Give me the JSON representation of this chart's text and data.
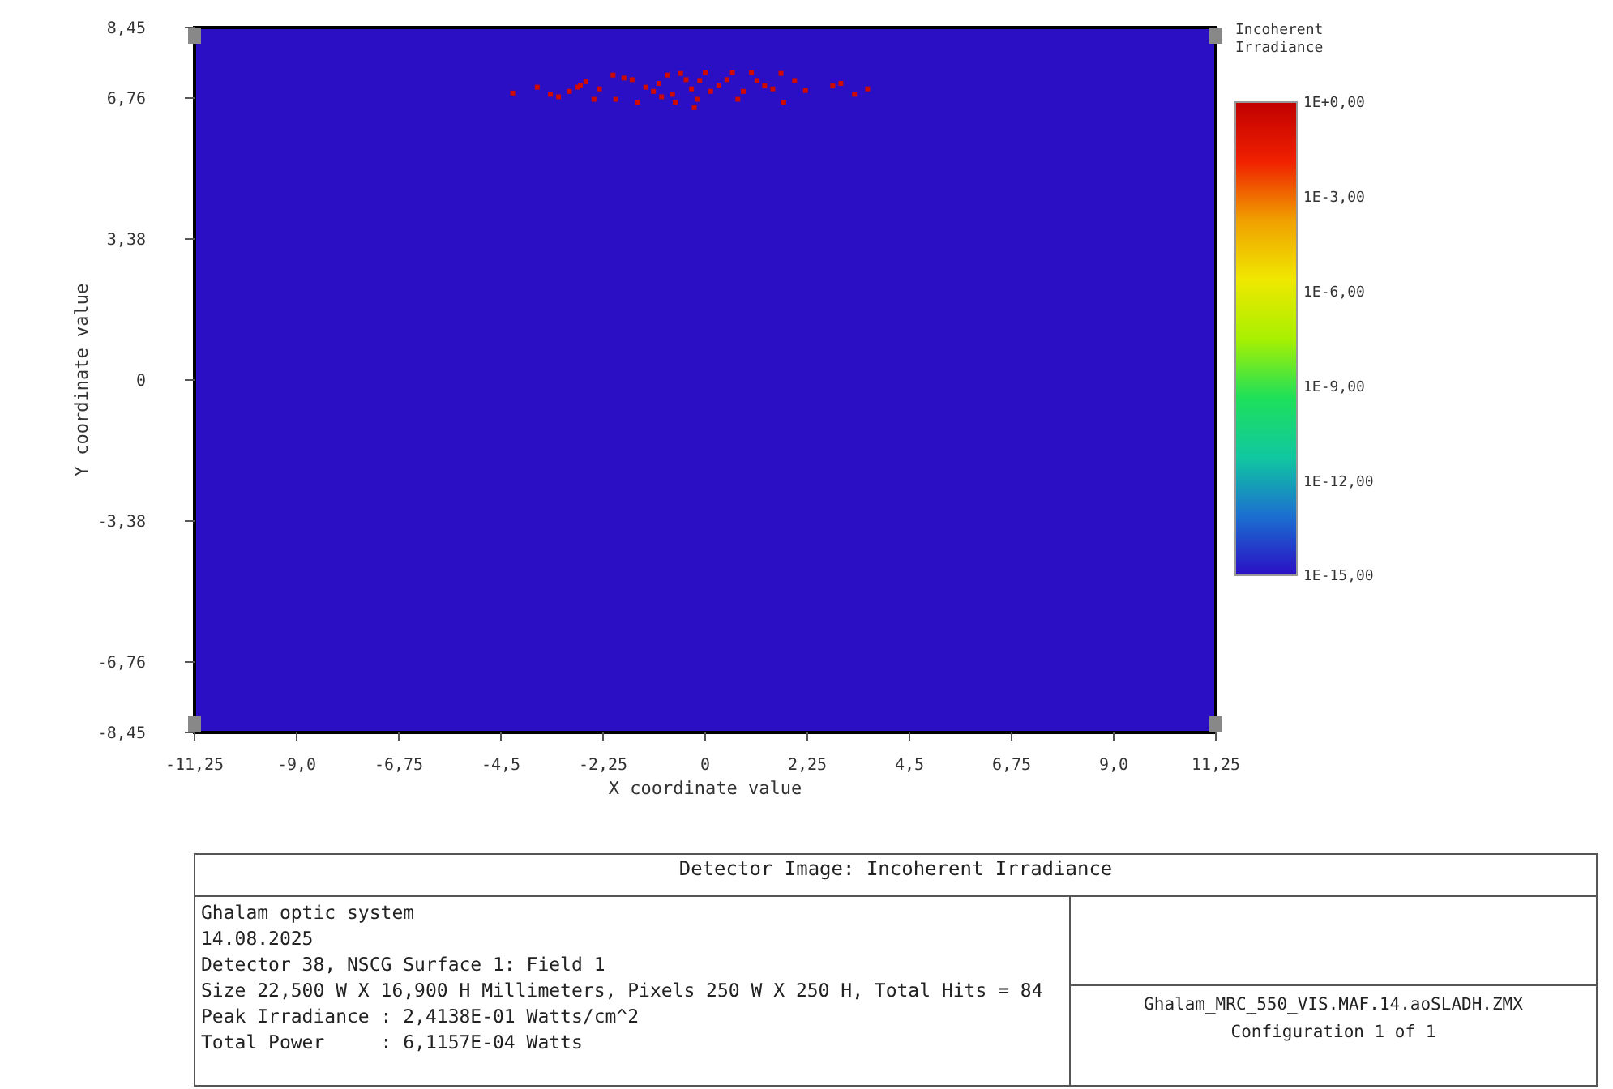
{
  "chart_data": {
    "type": "scatter",
    "title": "Detector Image: Incoherent Irradiance",
    "xlabel": "X coordinate value",
    "ylabel": "Y coordinate value",
    "clabel": "Incoherent Irradiance",
    "xlim": [
      -11.25,
      11.25
    ],
    "xticks": [
      {
        "value": -11.25,
        "label": "-11,25"
      },
      {
        "value": -9,
        "label": "-9,0"
      },
      {
        "value": -6.75,
        "label": "-6,75"
      },
      {
        "value": -4.5,
        "label": "-4,5"
      },
      {
        "value": -2.25,
        "label": "-2,25"
      },
      0,
      {
        "value": 2.25,
        "label": "2,25"
      },
      {
        "value": 4.5,
        "label": "4,5"
      },
      {
        "value": 6.75,
        "label": "6,75"
      },
      {
        "value": 9,
        "label": "9,0"
      },
      {
        "value": 11.25,
        "label": "11,25"
      }
    ],
    "ylim": [
      -8.45,
      8.45
    ],
    "yticks": [
      {
        "value": -8.45,
        "label": "-8,45"
      },
      {
        "value": -6.76,
        "label": "-6,76"
      },
      {
        "value": -3.38,
        "label": "-3,38"
      },
      0,
      {
        "value": 3.38,
        "label": "3,38"
      },
      {
        "value": 6.76,
        "label": "6,76"
      },
      {
        "value": 8.45,
        "label": "8,45"
      }
    ],
    "clim": [
      -15,
      0
    ],
    "cticks": [
      {
        "value": 0,
        "label": "1E+0,00"
      },
      {
        "value": -3,
        "label": "1E-3,00"
      },
      {
        "value": -6,
        "label": "1E-6,00"
      },
      {
        "value": -9,
        "label": "1E-9,00"
      },
      {
        "value": -12,
        "label": "1E-12,00"
      },
      {
        "value": -15,
        "label": "1E-15,00"
      }
    ],
    "x": [
      -4.24,
      -3.7,
      -3.41,
      -3.23,
      -2.99,
      -2.75,
      -2.63,
      -2.33,
      -2.03,
      -1.97,
      -1.79,
      -1.61,
      -1.49,
      -1.31,
      -1.14,
      -1.02,
      -0.84,
      -0.72,
      -0.66,
      -0.54,
      -0.42,
      -0.3,
      -0.24,
      -0.12,
      0,
      0.12,
      0.3,
      0.48,
      0.6,
      0.72,
      0.84,
      1.02,
      1.14,
      1.31,
      1.49,
      1.73,
      1.67,
      1.97,
      2.21,
      2.81,
      2.99,
      3.29,
      3.58,
      -0.18,
      -0.96,
      -2.45,
      -2.81
    ],
    "values": [
      6.88,
      7.02,
      6.85,
      6.79,
      6.92,
      7.07,
      7.15,
      6.98,
      7.31,
      6.73,
      7.24,
      7.2,
      6.66,
      7.02,
      6.92,
      7.11,
      7.31,
      6.85,
      6.66,
      7.35,
      7.2,
      6.98,
      6.53,
      7.18,
      7.37,
      6.92,
      7.07,
      7.2,
      7.37,
      6.73,
      6.92,
      7.37,
      7.18,
      7.05,
      6.98,
      6.66,
      7.35,
      7.18,
      6.94,
      7.05,
      7.11,
      6.85,
      6.98,
      6.73,
      6.79,
      6.73,
      7.02
    ],
    "cvalues": [
      -0.6,
      -0.6,
      -0.6,
      -0.6,
      -0.6,
      -0.6,
      -0.6,
      -0.6,
      -0.6,
      -0.6,
      -0.6,
      -0.6,
      -0.6,
      -0.6,
      -0.6,
      -0.6,
      -0.6,
      -0.6,
      -0.6,
      -0.6,
      -0.6,
      -0.6,
      -0.6,
      -0.6,
      -0.6,
      -0.6,
      -0.6,
      -0.6,
      -0.6,
      -0.6,
      -0.6,
      -0.6,
      -0.6,
      -0.6,
      -0.6,
      -0.6,
      -0.6,
      -0.6,
      -0.6,
      -0.6,
      -0.6,
      -0.6,
      -0.6,
      -0.6,
      -0.6,
      -0.6,
      -0.6
    ],
    "marker": "square",
    "annotations": [
      "Ghalam optic system",
      "14.08.2025",
      "Detector 38, NSCG Surface 1: Field 1",
      "Size 22,500 W X 16,900 H Millimeters, Pixels 250 W X 250 H, Total Hits = 84",
      "Peak Irradiance : 2,4138E-01 Watts/cm^2",
      "Total Power     : 6,1157E-04 Watts",
      "Ghalam_MRC_550_VIS.MAF.14.aoSLADH.ZMX",
      "Configuration 1 of 1"
    ]
  }
}
